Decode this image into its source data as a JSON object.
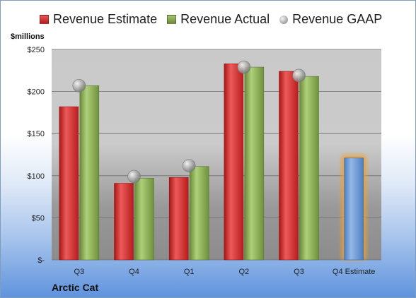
{
  "header": {
    "units_label": "$millions"
  },
  "footer": {
    "company": "Arctic Cat"
  },
  "legend": {
    "items": [
      {
        "label": "Revenue Estimate",
        "color": "#d42a2a",
        "shape": "square"
      },
      {
        "label": "Revenue Actual",
        "color": "#86a851",
        "shape": "square"
      },
      {
        "label": "Revenue GAAP",
        "color": "#a0a0a0",
        "shape": "circle"
      }
    ]
  },
  "chart_data": {
    "type": "bar",
    "categories": [
      "Q3",
      "Q4",
      "Q1",
      "Q2",
      "Q3",
      "Q4 Estimate"
    ],
    "series": [
      {
        "name": "Revenue Estimate",
        "color": "#d42a2a",
        "values": [
          182,
          91,
          98,
          233,
          224,
          121
        ]
      },
      {
        "name": "Revenue Actual",
        "color": "#86a851",
        "values": [
          207,
          97,
          111,
          229,
          218,
          null
        ]
      },
      {
        "name": "Revenue GAAP",
        "color": "#a0a0a0",
        "type": "scatter",
        "values": [
          207,
          99,
          112,
          229,
          219,
          null
        ]
      }
    ],
    "ylabel": "$millions",
    "ylim": [
      0,
      250
    ],
    "y_ticks": [
      0,
      50,
      100,
      150,
      200,
      250
    ],
    "y_tick_labels": [
      "$-",
      "$50",
      "$100",
      "$150",
      "$200",
      "$250"
    ],
    "grid": true,
    "legend_position": "top",
    "highlight": {
      "category": "Q4 Estimate",
      "color": "#6a9ad6",
      "glow": "#f0a030"
    }
  }
}
